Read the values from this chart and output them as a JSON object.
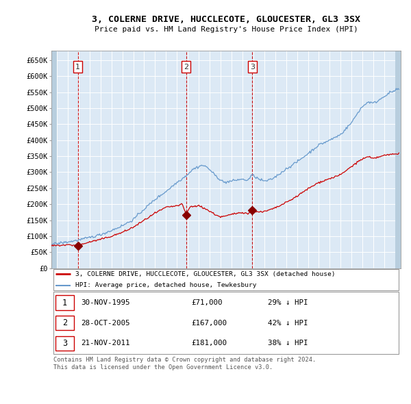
{
  "title": "3, COLERNE DRIVE, HUCCLECOTE, GLOUCESTER, GL3 3SX",
  "subtitle": "Price paid vs. HM Land Registry's House Price Index (HPI)",
  "ylim": [
    0,
    680000
  ],
  "yticks": [
    0,
    50000,
    100000,
    150000,
    200000,
    250000,
    300000,
    350000,
    400000,
    450000,
    500000,
    550000,
    600000,
    650000
  ],
  "ytick_labels": [
    "£0",
    "£50K",
    "£100K",
    "£150K",
    "£200K",
    "£250K",
    "£300K",
    "£350K",
    "£400K",
    "£450K",
    "£500K",
    "£550K",
    "£600K",
    "£650K"
  ],
  "bg_color": "#dce9f5",
  "hatch_color": "#c0cfdf",
  "grid_color": "#ffffff",
  "property_color": "#cc0000",
  "hpi_color": "#6699cc",
  "sale_marker_color": "#880000",
  "dashed_line_color": "#cc0000",
  "annotation_box_color": "#cc0000",
  "sales": [
    {
      "date_num": 1995.917,
      "price": 71000,
      "label": "1"
    },
    {
      "date_num": 2005.833,
      "price": 167000,
      "label": "2"
    },
    {
      "date_num": 2011.9,
      "price": 181000,
      "label": "3"
    }
  ],
  "sale_dates_str": [
    "30-NOV-1995",
    "28-OCT-2005",
    "21-NOV-2011"
  ],
  "sale_prices_str": [
    "£71,000",
    "£167,000",
    "£181,000"
  ],
  "sale_hpi_pct": [
    "29% ↓ HPI",
    "42% ↓ HPI",
    "38% ↓ HPI"
  ],
  "legend_property": "3, COLERNE DRIVE, HUCCLECOTE, GLOUCESTER, GL3 3SX (detached house)",
  "legend_hpi": "HPI: Average price, detached house, Tewkesbury",
  "footnote": "Contains HM Land Registry data © Crown copyright and database right 2024.\nThis data is licensed under the Open Government Licence v3.0.",
  "xlim_start": 1993.5,
  "xlim_end": 2025.5,
  "hatch_left_end": 1994.0,
  "hatch_right_start": 2025.0
}
